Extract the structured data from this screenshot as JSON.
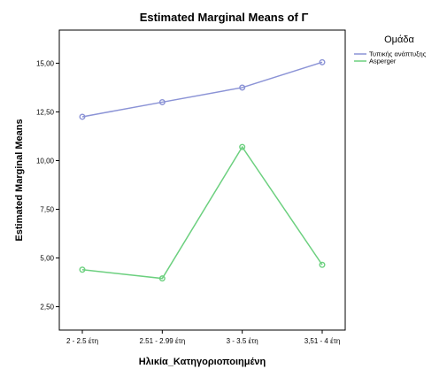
{
  "chart_data": {
    "type": "line",
    "title": "Estimated Marginal Means of Γ",
    "xlabel": "Ηλικία_Κατηγοριοποιημένη",
    "ylabel": "Estimated Marginal Means",
    "categories": [
      "2 - 2.5 έτη",
      "2.51 - 2.99 έτη",
      "3 - 3.5 έτη",
      "3,51 - 4 έτη"
    ],
    "yticks": [
      "2,50",
      "5,00",
      "7,50",
      "10,00",
      "12,50",
      "15,00"
    ],
    "ytick_values": [
      2.5,
      5.0,
      7.5,
      10.0,
      12.5,
      15.0
    ],
    "ylim": [
      1.3,
      16.7
    ],
    "grid": false,
    "legend": {
      "title": "Ομάδα",
      "placement": "right-top"
    },
    "series": [
      {
        "name": "Τυπικής ανάπτυξης",
        "color": "#8b93d6",
        "values": [
          12.25,
          13.0,
          13.75,
          15.05
        ]
      },
      {
        "name": "Asperger",
        "color": "#6cd07f",
        "values": [
          4.4,
          3.95,
          10.7,
          4.65
        ]
      }
    ]
  }
}
